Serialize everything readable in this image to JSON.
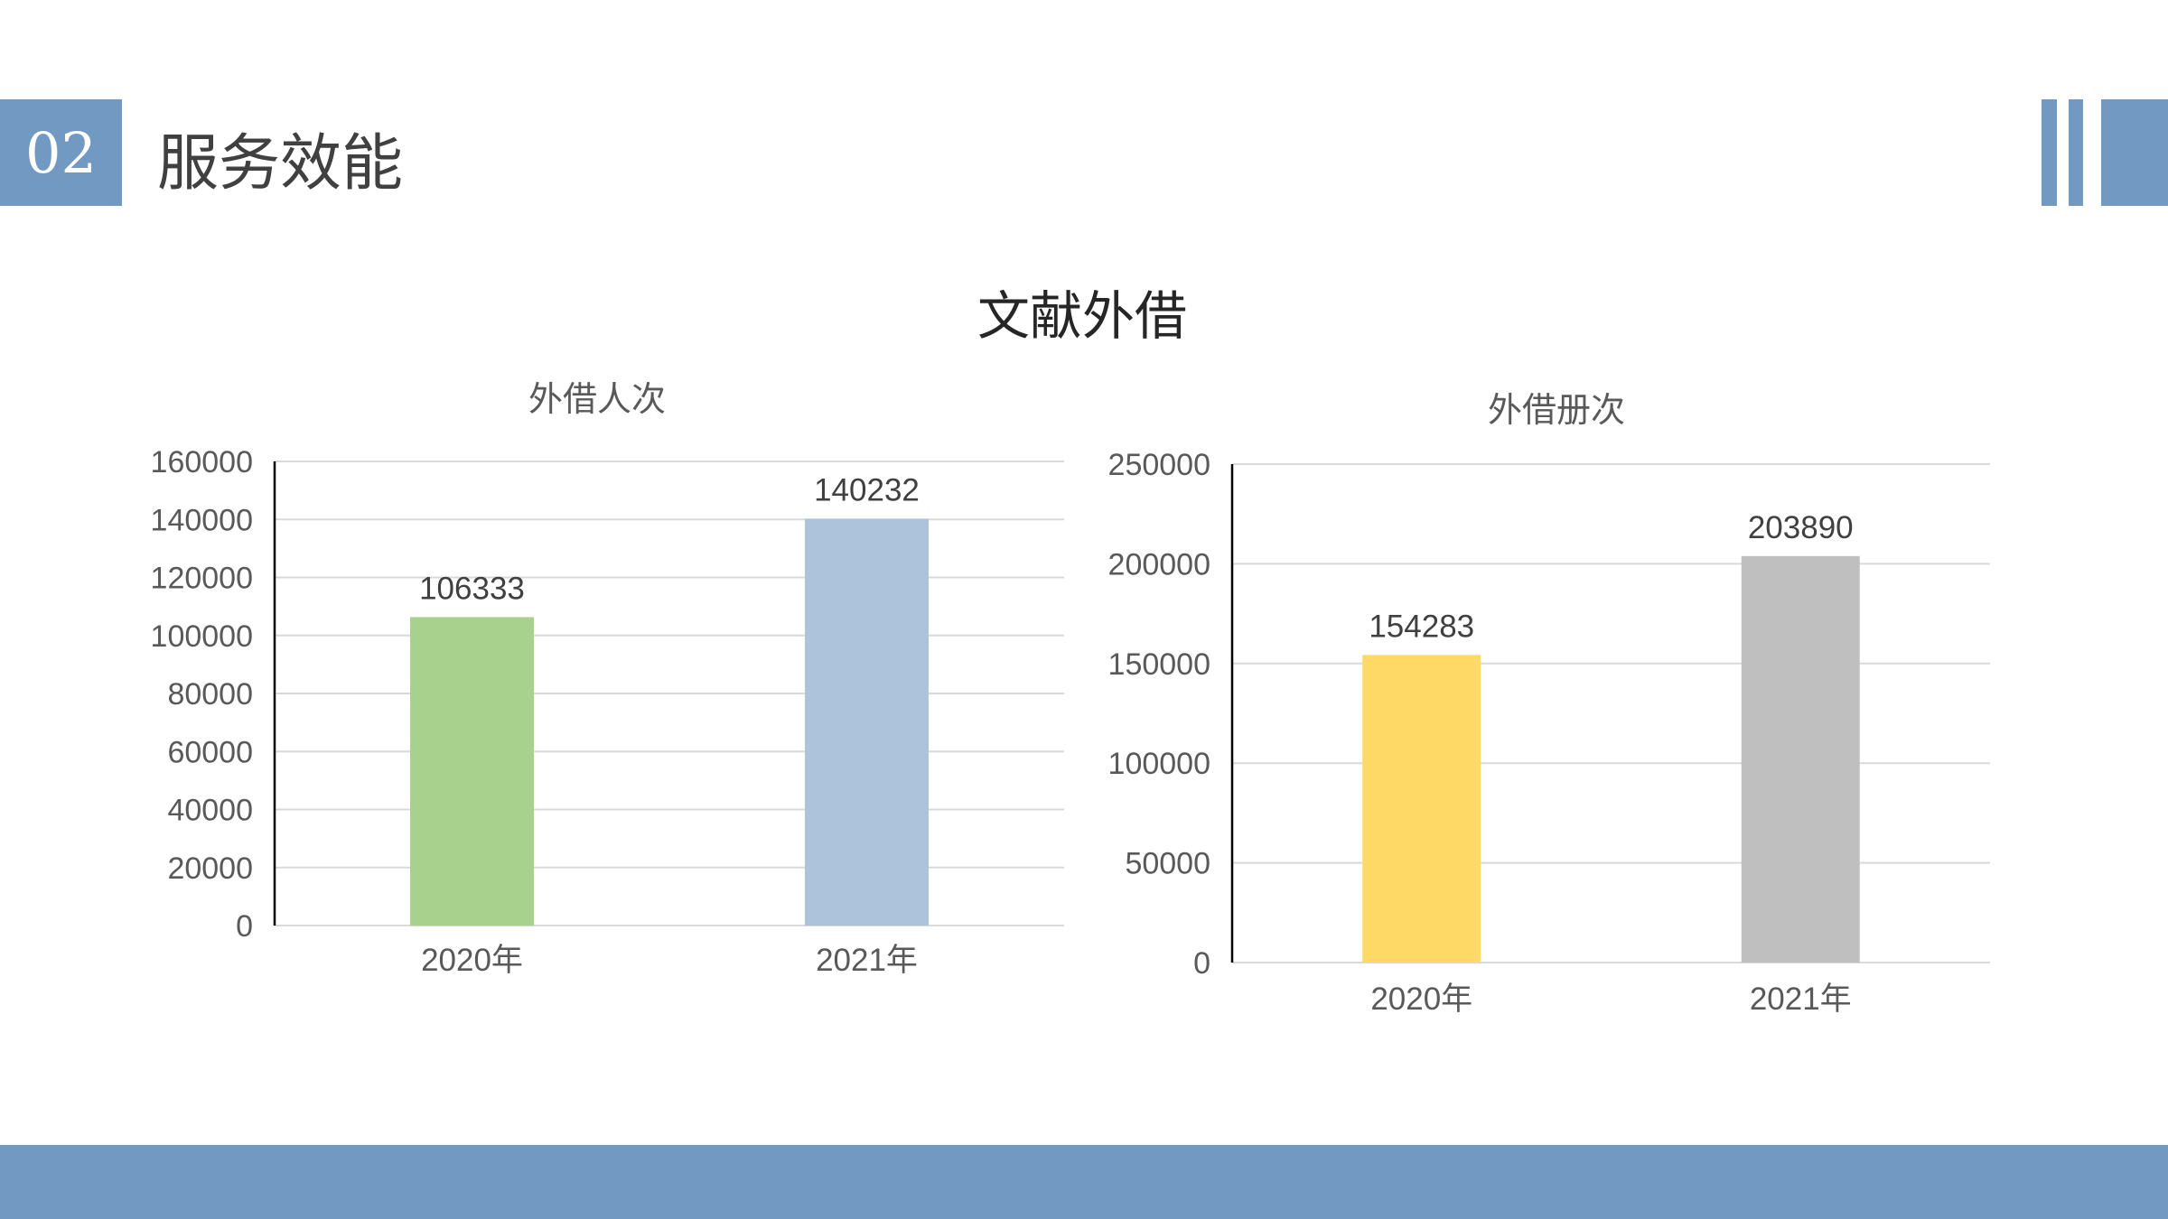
{
  "header": {
    "section_number": "02",
    "section_title": "服务效能"
  },
  "main_title": "文献外借",
  "colors": {
    "accent": "#7199c2",
    "gridline": "#d9d9d9",
    "axis": "#000000"
  },
  "chart_data": [
    {
      "type": "bar",
      "title": "外借人次",
      "categories": [
        "2020年",
        "2021年"
      ],
      "values": [
        106333,
        140232
      ],
      "bar_colors": [
        "#a9d18e",
        "#adc3db"
      ],
      "ylim": [
        0,
        160000
      ],
      "yticks": [
        "0",
        "20000",
        "40000",
        "60000",
        "80000",
        "100000",
        "120000",
        "140000",
        "160000"
      ],
      "data_labels": [
        "106333",
        "140232"
      ],
      "grid": true,
      "legend": "none"
    },
    {
      "type": "bar",
      "title": "外借册次",
      "categories": [
        "2020年",
        "2021年"
      ],
      "values": [
        154283,
        203890
      ],
      "bar_colors": [
        "#ffd966",
        "#bfbfbf"
      ],
      "ylim": [
        0,
        250000
      ],
      "yticks": [
        "0",
        "50000",
        "100000",
        "150000",
        "200000",
        "250000"
      ],
      "data_labels": [
        "154283",
        "203890"
      ],
      "grid": true,
      "legend": "none"
    }
  ]
}
